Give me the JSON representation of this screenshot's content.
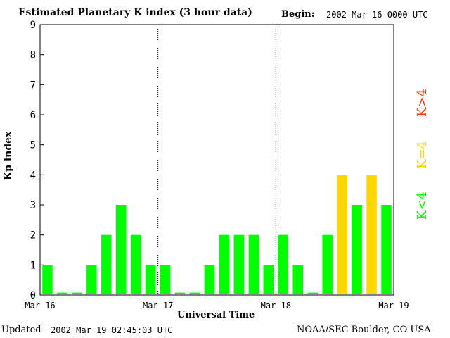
{
  "header": {
    "title": "Estimated Planetary K index (3 hour data)",
    "begin_label": "Begin:",
    "begin_value": "2002 Mar 16 0000 UTC"
  },
  "footer": {
    "updated_label": "Updated",
    "updated_value": "2002 Mar 19 02:45:03 UTC",
    "source": "NOAA/SEC Boulder, CO USA"
  },
  "legend": {
    "low": {
      "label": "K<4",
      "color": "#00ff00"
    },
    "mid": {
      "label": "K=4",
      "color": "#ffd700"
    },
    "high": {
      "label": "K>4",
      "color": "#ff3300"
    }
  },
  "chart_data": {
    "type": "bar",
    "title": "Estimated Planetary K index (3 hour data)",
    "xlabel": "Universal Time",
    "ylabel": "Kp index",
    "ylim": [
      0,
      9
    ],
    "y_ticks": [
      "0",
      "1",
      "2",
      "3",
      "4",
      "5",
      "6",
      "7",
      "8",
      "9"
    ],
    "x_tick_labels": [
      "Mar 16",
      "Mar 17",
      "Mar 18",
      "Mar 19"
    ],
    "day_separators": [
      "Mar 17",
      "Mar 18"
    ],
    "interval_hours": 3,
    "values": [
      1,
      0,
      0,
      1,
      2,
      3,
      2,
      1,
      1,
      0,
      0,
      1,
      2,
      2,
      2,
      1,
      2,
      1,
      0,
      2,
      4,
      3,
      4,
      3
    ],
    "color_rule": "K<4 green, K=4 yellow, K>4 red",
    "grid": false
  }
}
